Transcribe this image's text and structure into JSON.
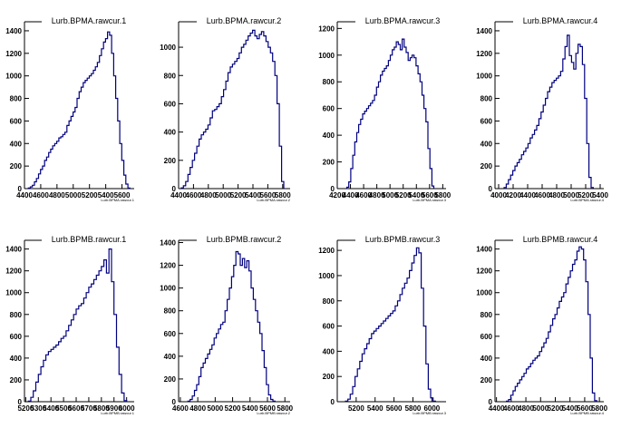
{
  "colors": {
    "line": "#00007f",
    "axis": "#000000",
    "background": "#ffffff"
  },
  "chart_data": [
    {
      "type": "histogram",
      "title": "Lurb.BPMA.rawcur.1",
      "axis_caption": "Lurb.BPMA.rawcur.1",
      "x_ticks": [
        4400,
        4600,
        4800,
        5000,
        5200,
        5400,
        5600
      ],
      "x_tick_labels": [
        "4400",
        "4600",
        "4800",
        "5000",
        "5200",
        "5400",
        "5600"
      ],
      "xlim": [
        4400,
        5750
      ],
      "ylim": [
        0,
        1480
      ],
      "y_ticks": [
        0,
        200,
        400,
        600,
        800,
        1000,
        1200,
        1400
      ],
      "y_tick_labels": [
        "0",
        "200",
        "400",
        "600",
        "800",
        "1000",
        "1200",
        "1400"
      ],
      "x": [
        4460,
        4485,
        4510,
        4535,
        4560,
        4585,
        4610,
        4635,
        4660,
        4685,
        4710,
        4735,
        4760,
        4785,
        4810,
        4835,
        4860,
        4885,
        4910,
        4935,
        4960,
        4985,
        5010,
        5035,
        5060,
        5085,
        5110,
        5135,
        5160,
        5185,
        5210,
        5235,
        5260,
        5285,
        5310,
        5335,
        5360,
        5385,
        5410,
        5435,
        5460,
        5485,
        5510,
        5535,
        5560,
        5585,
        5610,
        5635,
        5660,
        5685
      ],
      "values": [
        5,
        15,
        30,
        60,
        90,
        130,
        170,
        200,
        250,
        280,
        320,
        350,
        380,
        400,
        420,
        450,
        460,
        480,
        500,
        560,
        600,
        640,
        680,
        720,
        800,
        860,
        900,
        940,
        960,
        980,
        1000,
        1020,
        1050,
        1080,
        1120,
        1180,
        1240,
        1300,
        1330,
        1390,
        1360,
        1200,
        1000,
        800,
        600,
        400,
        250,
        120,
        40,
        5
      ]
    },
    {
      "type": "histogram",
      "title": "Lurb.BPMA.rawcur.2",
      "axis_caption": "Lurb.BPMA.rawcur.2",
      "x_ticks": [
        4400,
        4600,
        4800,
        5000,
        5200,
        5400,
        5600,
        5800
      ],
      "x_tick_labels": [
        "4400",
        "4600",
        "4800",
        "5000",
        "5200",
        "5400",
        "5600",
        "5800"
      ],
      "xlim": [
        4400,
        5900
      ],
      "ylim": [
        0,
        1180
      ],
      "y_ticks": [
        0,
        200,
        400,
        600,
        800,
        1000
      ],
      "y_tick_labels": [
        "0",
        "200",
        "400",
        "600",
        "800",
        "1000"
      ],
      "x": [
        4450,
        4480,
        4510,
        4540,
        4570,
        4600,
        4630,
        4660,
        4690,
        4720,
        4750,
        4780,
        4810,
        4840,
        4870,
        4900,
        4930,
        4960,
        4990,
        5020,
        5050,
        5080,
        5110,
        5140,
        5170,
        5200,
        5230,
        5260,
        5290,
        5320,
        5350,
        5380,
        5410,
        5440,
        5470,
        5500,
        5530,
        5560,
        5590,
        5620,
        5650,
        5680,
        5710,
        5740,
        5770,
        5800
      ],
      "values": [
        5,
        20,
        50,
        100,
        150,
        200,
        250,
        300,
        350,
        380,
        400,
        420,
        450,
        500,
        550,
        560,
        580,
        600,
        650,
        700,
        760,
        820,
        860,
        880,
        900,
        920,
        960,
        1000,
        1020,
        1050,
        1080,
        1100,
        1120,
        1080,
        1060,
        1090,
        1110,
        1080,
        1040,
        1000,
        960,
        900,
        800,
        600,
        300,
        50
      ]
    },
    {
      "type": "histogram",
      "title": "Lurb.BPMA.rawcur.3",
      "axis_caption": "Lurb.BPMA.rawcur.3",
      "x_ticks": [
        4200,
        4400,
        4600,
        4800,
        5000,
        5200,
        5400,
        5600,
        5800
      ],
      "x_tick_labels": [
        "4200",
        "4400",
        "4600",
        "4800",
        "5000",
        "5200",
        "5400",
        "5600",
        "5800"
      ],
      "xlim": [
        4200,
        5850
      ],
      "ylim": [
        0,
        1250
      ],
      "y_ticks": [
        0,
        200,
        400,
        600,
        800,
        1000,
        1200
      ],
      "y_tick_labels": [
        "0",
        "200",
        "400",
        "600",
        "800",
        "1000",
        "1200"
      ],
      "x": [
        4360,
        4390,
        4420,
        4450,
        4480,
        4510,
        4540,
        4570,
        4600,
        4630,
        4660,
        4690,
        4720,
        4750,
        4780,
        4810,
        4840,
        4870,
        4900,
        4930,
        4960,
        4990,
        5020,
        5050,
        5080,
        5110,
        5140,
        5170,
        5200,
        5230,
        5260,
        5290,
        5320,
        5350,
        5380,
        5410,
        5440,
        5470,
        5500,
        5530,
        5560,
        5590,
        5620,
        5650
      ],
      "values": [
        10,
        50,
        150,
        250,
        350,
        420,
        480,
        520,
        560,
        580,
        600,
        620,
        640,
        660,
        700,
        760,
        800,
        850,
        880,
        900,
        920,
        960,
        1000,
        1040,
        1060,
        1100,
        1080,
        1040,
        1120,
        1060,
        1020,
        960,
        980,
        1000,
        980,
        920,
        860,
        800,
        700,
        600,
        500,
        300,
        150,
        20
      ]
    },
    {
      "type": "histogram",
      "title": "Lurb.BPMA.rawcur.4",
      "axis_caption": "Lurb.BPMA.rawcur.4",
      "x_ticks": [
        4000,
        4200,
        4400,
        4600,
        4800,
        5000,
        5200,
        5400
      ],
      "x_tick_labels": [
        "4000",
        "4200",
        "4400",
        "4600",
        "4800",
        "5000",
        "5200",
        "5400"
      ],
      "xlim": [
        3950,
        5450
      ],
      "ylim": [
        0,
        1480
      ],
      "y_ticks": [
        0,
        200,
        400,
        600,
        800,
        1000,
        1200,
        1400
      ],
      "y_tick_labels": [
        "0",
        "200",
        "400",
        "600",
        "800",
        "1000",
        "1200",
        "1400"
      ],
      "x": [
        4090,
        4120,
        4150,
        4180,
        4210,
        4240,
        4270,
        4300,
        4330,
        4360,
        4390,
        4420,
        4450,
        4480,
        4510,
        4540,
        4570,
        4600,
        4630,
        4660,
        4690,
        4720,
        4750,
        4780,
        4810,
        4840,
        4870,
        4900,
        4930,
        4960,
        4990,
        5020,
        5050,
        5080,
        5110,
        5140,
        5170,
        5200,
        5230,
        5260,
        5290
      ],
      "values": [
        10,
        40,
        80,
        120,
        160,
        200,
        230,
        260,
        300,
        330,
        360,
        400,
        450,
        480,
        520,
        560,
        620,
        680,
        740,
        800,
        860,
        900,
        940,
        960,
        980,
        1000,
        1040,
        1150,
        1260,
        1360,
        1180,
        1120,
        1060,
        1200,
        1280,
        1260,
        1100,
        800,
        400,
        100,
        10
      ]
    },
    {
      "type": "histogram",
      "title": "Lurb.BPMB.rawcur.1",
      "axis_caption": "Lurb.BPMB.rawcur.1",
      "x_ticks": [
        5200,
        5300,
        5400,
        5500,
        5600,
        5700,
        5800,
        5900,
        6000
      ],
      "x_tick_labels": [
        "5200",
        "5300",
        "5400",
        "5500",
        "5600",
        "5700",
        "5800",
        "5900",
        "6000"
      ],
      "xlim": [
        5190,
        6060
      ],
      "ylim": [
        0,
        1480
      ],
      "y_ticks": [
        0,
        200,
        400,
        600,
        800,
        1000,
        1200,
        1400
      ],
      "y_tick_labels": [
        "0",
        "200",
        "400",
        "600",
        "800",
        "1000",
        "1200",
        "1400"
      ],
      "x": [
        5230,
        5250,
        5270,
        5290,
        5310,
        5330,
        5350,
        5370,
        5390,
        5410,
        5430,
        5450,
        5470,
        5490,
        5510,
        5530,
        5550,
        5570,
        5590,
        5610,
        5630,
        5650,
        5670,
        5690,
        5710,
        5730,
        5750,
        5770,
        5790,
        5810,
        5830,
        5850,
        5870,
        5890,
        5910,
        5930,
        5950,
        5970,
        5990
      ],
      "values": [
        5,
        40,
        100,
        180,
        250,
        320,
        380,
        430,
        460,
        480,
        500,
        520,
        550,
        580,
        600,
        650,
        700,
        750,
        800,
        850,
        880,
        900,
        950,
        1000,
        1050,
        1080,
        1120,
        1160,
        1200,
        1240,
        1300,
        1180,
        1400,
        1100,
        800,
        500,
        250,
        80,
        10
      ]
    },
    {
      "type": "histogram",
      "title": "Lurb.BPMB.rawcur.2",
      "axis_caption": "Lurb.BPMB.rawcur.2",
      "x_ticks": [
        4600,
        4800,
        5000,
        5200,
        5400,
        5600,
        5800
      ],
      "x_tick_labels": [
        "4600",
        "4800",
        "5000",
        "5200",
        "5400",
        "5600",
        "5800"
      ],
      "xlim": [
        4580,
        5860
      ],
      "ylim": [
        0,
        1420
      ],
      "y_ticks": [
        0,
        200,
        400,
        600,
        800,
        1000,
        1200,
        1400
      ],
      "y_tick_labels": [
        "0",
        "200",
        "400",
        "600",
        "800",
        "1000",
        "1200",
        "1400"
      ],
      "x": [
        4700,
        4725,
        4750,
        4775,
        4800,
        4825,
        4850,
        4875,
        4900,
        4925,
        4950,
        4975,
        5000,
        5025,
        5050,
        5075,
        5100,
        5125,
        5150,
        5175,
        5200,
        5225,
        5250,
        5275,
        5300,
        5325,
        5350,
        5375,
        5400,
        5425,
        5450,
        5475,
        5500,
        5525,
        5550,
        5575,
        5600,
        5625,
        5650,
        5675
      ],
      "values": [
        5,
        20,
        50,
        100,
        150,
        220,
        300,
        340,
        380,
        420,
        460,
        500,
        560,
        600,
        640,
        680,
        700,
        800,
        900,
        1000,
        1100,
        1200,
        1320,
        1300,
        1200,
        1260,
        1180,
        1240,
        1150,
        1000,
        900,
        800,
        700,
        600,
        450,
        300,
        150,
        60,
        20,
        5
      ]
    },
    {
      "type": "histogram",
      "title": "Lurb.BPMB.rawcur.3",
      "axis_caption": "Lurb.BPMB.rawcur.3",
      "x_ticks": [
        5200,
        5400,
        5600,
        5800,
        6000
      ],
      "x_tick_labels": [
        "5200",
        "5400",
        "5600",
        "5800",
        "6000"
      ],
      "xlim": [
        5000,
        6150
      ],
      "ylim": [
        0,
        1280
      ],
      "y_ticks": [
        0,
        200,
        400,
        600,
        800,
        1000,
        1200
      ],
      "y_tick_labels": [
        "0",
        "200",
        "400",
        "600",
        "800",
        "1000",
        "1200"
      ],
      "x": [
        5100,
        5125,
        5150,
        5175,
        5200,
        5225,
        5250,
        5275,
        5300,
        5325,
        5350,
        5375,
        5400,
        5425,
        5450,
        5475,
        5500,
        5525,
        5550,
        5575,
        5600,
        5625,
        5650,
        5675,
        5700,
        5725,
        5750,
        5775,
        5800,
        5825,
        5850,
        5875,
        5900,
        5925,
        5950,
        5975,
        6000,
        6025
      ],
      "values": [
        5,
        20,
        60,
        120,
        200,
        260,
        320,
        380,
        420,
        460,
        500,
        540,
        560,
        580,
        600,
        620,
        640,
        660,
        680,
        700,
        720,
        760,
        800,
        850,
        900,
        940,
        980,
        1040,
        1100,
        1160,
        1220,
        1180,
        900,
        600,
        300,
        100,
        30,
        5
      ]
    },
    {
      "type": "histogram",
      "title": "Lurb.BPMB.rawcur.4",
      "axis_caption": "Lurb.BPMB.rawcur.4",
      "x_ticks": [
        4400,
        4600,
        4800,
        5000,
        5200,
        5400,
        5600,
        5800
      ],
      "x_tick_labels": [
        "4400",
        "4600",
        "4800",
        "5000",
        "5200",
        "5400",
        "5600",
        "5800"
      ],
      "xlim": [
        4380,
        5860
      ],
      "ylim": [
        0,
        1480
      ],
      "y_ticks": [
        0,
        200,
        400,
        600,
        800,
        1000,
        1200,
        1400
      ],
      "y_tick_labels": [
        "0",
        "200",
        "400",
        "600",
        "800",
        "1000",
        "1200",
        "1400"
      ],
      "x": [
        4550,
        4580,
        4610,
        4640,
        4670,
        4700,
        4730,
        4760,
        4790,
        4820,
        4850,
        4880,
        4910,
        4940,
        4970,
        5000,
        5030,
        5060,
        5090,
        5120,
        5150,
        5180,
        5210,
        5240,
        5270,
        5300,
        5330,
        5360,
        5390,
        5420,
        5450,
        5480,
        5510,
        5540,
        5570,
        5600,
        5630,
        5660,
        5690,
        5720,
        5750
      ],
      "values": [
        5,
        20,
        60,
        100,
        140,
        170,
        200,
        230,
        260,
        300,
        320,
        350,
        380,
        400,
        420,
        460,
        500,
        540,
        580,
        640,
        700,
        760,
        800,
        860,
        920,
        960,
        1000,
        1080,
        1140,
        1200,
        1260,
        1300,
        1380,
        1420,
        1400,
        1300,
        1100,
        800,
        400,
        80,
        10
      ]
    }
  ]
}
